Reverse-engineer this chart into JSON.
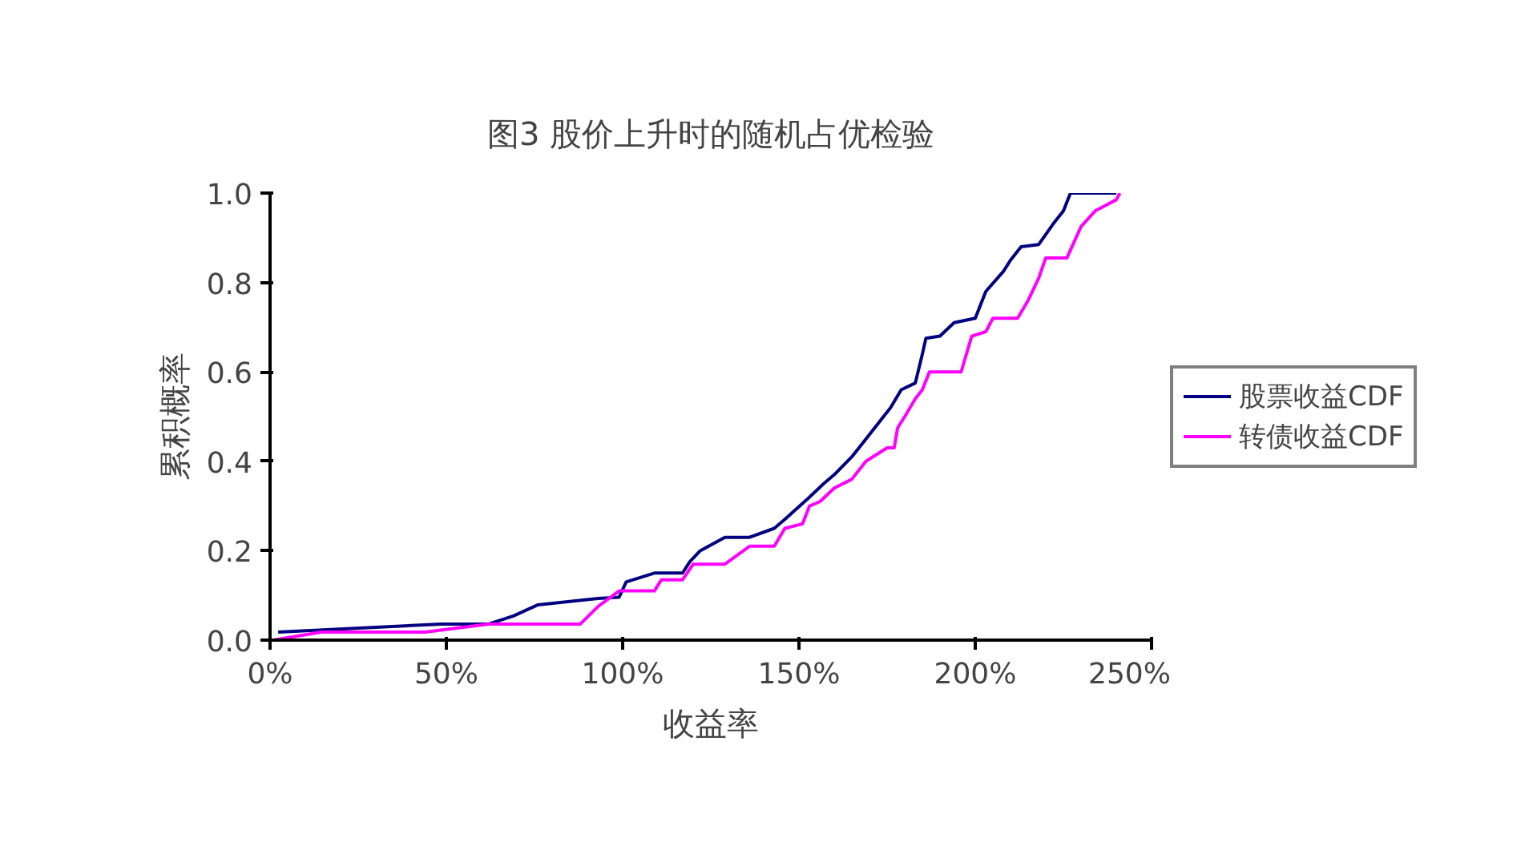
{
  "chart_data": {
    "type": "line",
    "title": "图3 股价上升时的随机占优检验",
    "xlabel": "收益率",
    "ylabel": "累积概率",
    "xlim": [
      0,
      250
    ],
    "ylim": [
      0,
      1
    ],
    "xticks": [
      {
        "value": 0,
        "label": "0%"
      },
      {
        "value": 50,
        "label": "50%"
      },
      {
        "value": 100,
        "label": "100%"
      },
      {
        "value": 150,
        "label": "150%"
      },
      {
        "value": 200,
        "label": "200%"
      },
      {
        "value": 250,
        "label": "250%"
      }
    ],
    "yticks": [
      {
        "value": 0,
        "label": "0.0"
      },
      {
        "value": 0.2,
        "label": "0.2"
      },
      {
        "value": 0.4,
        "label": "0.4"
      },
      {
        "value": 0.6,
        "label": "0.6"
      },
      {
        "value": 0.8,
        "label": "0.8"
      },
      {
        "value": 1,
        "label": "1.0"
      }
    ],
    "grid": false,
    "legend": "right",
    "marker": "none",
    "line_style": "solid",
    "series": [
      {
        "name": "股票收益CDF",
        "color": "#000080",
        "x": [
          2.3,
          48.6,
          62,
          69,
          76,
          93,
          99,
          101,
          109,
          117,
          119,
          122,
          129,
          136,
          143,
          146,
          153,
          157,
          160,
          165,
          169,
          173,
          176,
          179,
          183,
          185,
          186,
          190,
          194,
          200,
          203,
          208,
          210,
          213,
          218,
          222,
          225,
          227,
          240
        ],
        "values": [
          0.018,
          0.036,
          0.036,
          0.054,
          0.079,
          0.093,
          0.096,
          0.13,
          0.15,
          0.15,
          0.175,
          0.2,
          0.23,
          0.23,
          0.25,
          0.27,
          0.32,
          0.35,
          0.37,
          0.41,
          0.45,
          0.49,
          0.52,
          0.56,
          0.575,
          0.64,
          0.675,
          0.68,
          0.71,
          0.72,
          0.78,
          0.825,
          0.85,
          0.88,
          0.885,
          0.93,
          0.96,
          1.0,
          1.0
        ]
      },
      {
        "name": "转债收益CDF",
        "color": "#ff00ff",
        "x": [
          1,
          14.5,
          44,
          62,
          88,
          93,
          99,
          109,
          111,
          117,
          120,
          129,
          136,
          143,
          146,
          151,
          153,
          156,
          160,
          165,
          169,
          175,
          177,
          178,
          180,
          183,
          185,
          187,
          196,
          199,
          203,
          205,
          212,
          215,
          218,
          220,
          226,
          230,
          234,
          240,
          241
        ],
        "values": [
          0.0,
          0.018,
          0.018,
          0.036,
          0.036,
          0.075,
          0.11,
          0.11,
          0.135,
          0.135,
          0.17,
          0.17,
          0.21,
          0.21,
          0.25,
          0.26,
          0.3,
          0.31,
          0.34,
          0.36,
          0.4,
          0.43,
          0.43,
          0.475,
          0.5,
          0.54,
          0.56,
          0.6,
          0.6,
          0.68,
          0.69,
          0.72,
          0.72,
          0.76,
          0.81,
          0.855,
          0.855,
          0.925,
          0.96,
          0.985,
          1.0
        ]
      }
    ]
  }
}
